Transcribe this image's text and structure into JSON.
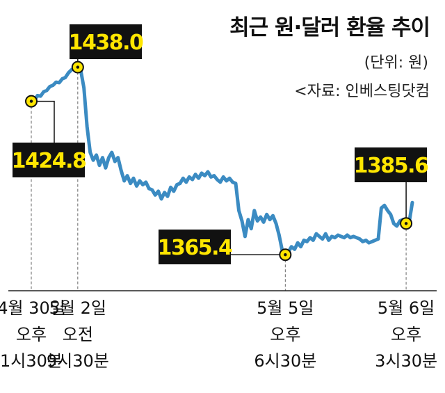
{
  "title": "최근 원·달러 환율 추이",
  "unit": "(단위: 원)",
  "source": "<자료: 인베스팅닷컴",
  "colors": {
    "line": "#3b8bc2",
    "label_bg": "#111111",
    "label_text": "#ffe600",
    "marker": "#ffe600"
  },
  "chart_data": {
    "type": "line",
    "title": "최근 원·달러 환율 추이",
    "ylabel": "원",
    "xlabel": "",
    "legend": "none",
    "grid": false,
    "ylim": [
      1352,
      1450
    ],
    "x_ticks": [
      {
        "line1": "4월 30일",
        "line2": "오후",
        "line3": "1시30분"
      },
      {
        "line1": "5월 2일",
        "line2": "오전",
        "line3": "9시30분"
      },
      {
        "line1": "5월 5일",
        "line2": "오후",
        "line3": "6시30분"
      },
      {
        "line1": "5월 6일",
        "line2": "오후",
        "line3": "3시30분"
      }
    ],
    "annotations": [
      {
        "label": "1424.8",
        "index": 0
      },
      {
        "label": "1438.0",
        "index": 1
      },
      {
        "label": "1365.4",
        "index": 2
      },
      {
        "label": "1385.6",
        "index": 3
      }
    ],
    "series": [
      {
        "values": [
          1424.8,
          1425.2,
          1427.0,
          1426.8,
          1428.5,
          1429.0,
          1430.5,
          1431.0,
          1432.2,
          1432.0,
          1433.5,
          1434.0,
          1435.8,
          1437.0,
          1437.8,
          1438.0,
          1436.5,
          1430.0,
          1415.0,
          1405.0,
          1402.0,
          1404.0,
          1400.0,
          1403.0,
          1399.0,
          1403.0,
          1405.0,
          1401.5,
          1403.0,
          1398.0,
          1394.0,
          1396.0,
          1393.0,
          1395.0,
          1392.0,
          1394.0,
          1392.5,
          1393.5,
          1391.0,
          1390.5,
          1388.5,
          1390.0,
          1387.0,
          1389.5,
          1388.0,
          1391.5,
          1390.0,
          1392.5,
          1393.0,
          1395.0,
          1393.5,
          1395.5,
          1394.5,
          1396.5,
          1395.0,
          1397.0,
          1396.0,
          1397.5,
          1395.5,
          1396.0,
          1394.5,
          1393.5,
          1395.5,
          1394.0,
          1395.0,
          1393.5,
          1393.0,
          1382.5,
          1378.5,
          1372.5,
          1379.0,
          1375.5,
          1382.5,
          1378.5,
          1380.0,
          1378.0,
          1381.0,
          1379.0,
          1380.5,
          1377.5,
          1373.0,
          1367.0,
          1365.4,
          1366.5,
          1368.5,
          1367.5,
          1370.0,
          1368.5,
          1371.0,
          1370.5,
          1372.0,
          1371.0,
          1373.5,
          1372.5,
          1371.5,
          1373.5,
          1371.0,
          1372.5,
          1372.0,
          1373.0,
          1372.5,
          1372.0,
          1373.0,
          1372.0,
          1372.5,
          1372.0,
          1371.5,
          1370.5,
          1371.0,
          1370.0,
          1370.5,
          1371.0,
          1371.5,
          1383.5,
          1384.5,
          1382.5,
          1381.0,
          1377.5,
          1376.5,
          1378.5,
          1379.0,
          1377.5,
          1378.0,
          1385.6
        ]
      }
    ],
    "marker_indices": [
      0,
      15,
      82,
      121
    ],
    "tick_indices": [
      0,
      15,
      82,
      121
    ]
  }
}
